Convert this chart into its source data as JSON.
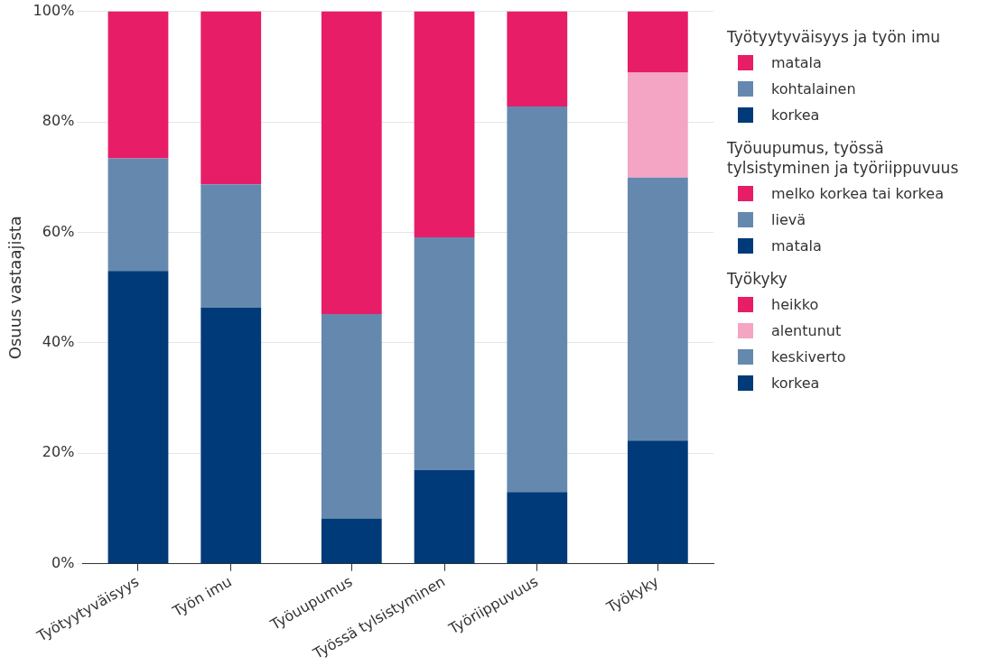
{
  "chart_data": {
    "type": "bar",
    "stacked": true,
    "ylabel": "Osuus vastaajista",
    "categories": [
      "Työtyytyväisyys",
      "Työn imu",
      "Työuupumus",
      "Työssä tylsistyminen",
      "Työriippuvuus",
      "Työkyky"
    ],
    "legend_title": [
      "Työtyytyväisyys ja työn imu",
      "Työuupumus, työssä tylsistyminen ja työriippuvuus",
      "Työkyky"
    ],
    "series": [
      {
        "name": "korkea",
        "color": "#003a78",
        "values": [
          53.0,
          46.4,
          null,
          null,
          null,
          null
        ]
      },
      {
        "name": "kohtalainen",
        "color": "#6589ae",
        "values": [
          20.4,
          22.3,
          null,
          null,
          null,
          null
        ]
      },
      {
        "name": "matala",
        "color": "#e71d67",
        "values": [
          26.6,
          31.3,
          null,
          null,
          null,
          null
        ]
      },
      {
        "name": "matala",
        "color": "#003a78",
        "values": [
          null,
          null,
          8.2,
          17.0,
          13.0,
          null
        ]
      },
      {
        "name": "lievä",
        "color": "#6589ae",
        "values": [
          null,
          null,
          37.0,
          42.1,
          69.8,
          null
        ]
      },
      {
        "name": "melko korkea tai korkea",
        "color": "#e71d67",
        "values": [
          null,
          null,
          54.8,
          40.9,
          17.2,
          null
        ]
      },
      {
        "name": "korkea",
        "color": "#003a78",
        "values": [
          null,
          null,
          null,
          null,
          null,
          22.3
        ]
      },
      {
        "name": "keskiverto",
        "color": "#6589ae",
        "values": [
          null,
          null,
          null,
          null,
          null,
          47.6
        ]
      },
      {
        "name": "alentunut",
        "color": "#f4a5c4",
        "values": [
          null,
          null,
          null,
          null,
          null,
          19.0
        ]
      },
      {
        "name": "heikko",
        "color": "#e71d67",
        "values": [
          null,
          null,
          null,
          null,
          null,
          11.1
        ]
      }
    ],
    "ylim": [
      0,
      100
    ],
    "yticks": [
      {
        "value": 0,
        "label": "0%"
      },
      {
        "value": 20,
        "label": "20%"
      },
      {
        "value": 40,
        "label": "40%"
      },
      {
        "value": 60,
        "label": "60%"
      },
      {
        "value": 80,
        "label": "80%"
      },
      {
        "value": 100,
        "label": "100%"
      }
    ],
    "grid": "y",
    "legend": "right"
  }
}
